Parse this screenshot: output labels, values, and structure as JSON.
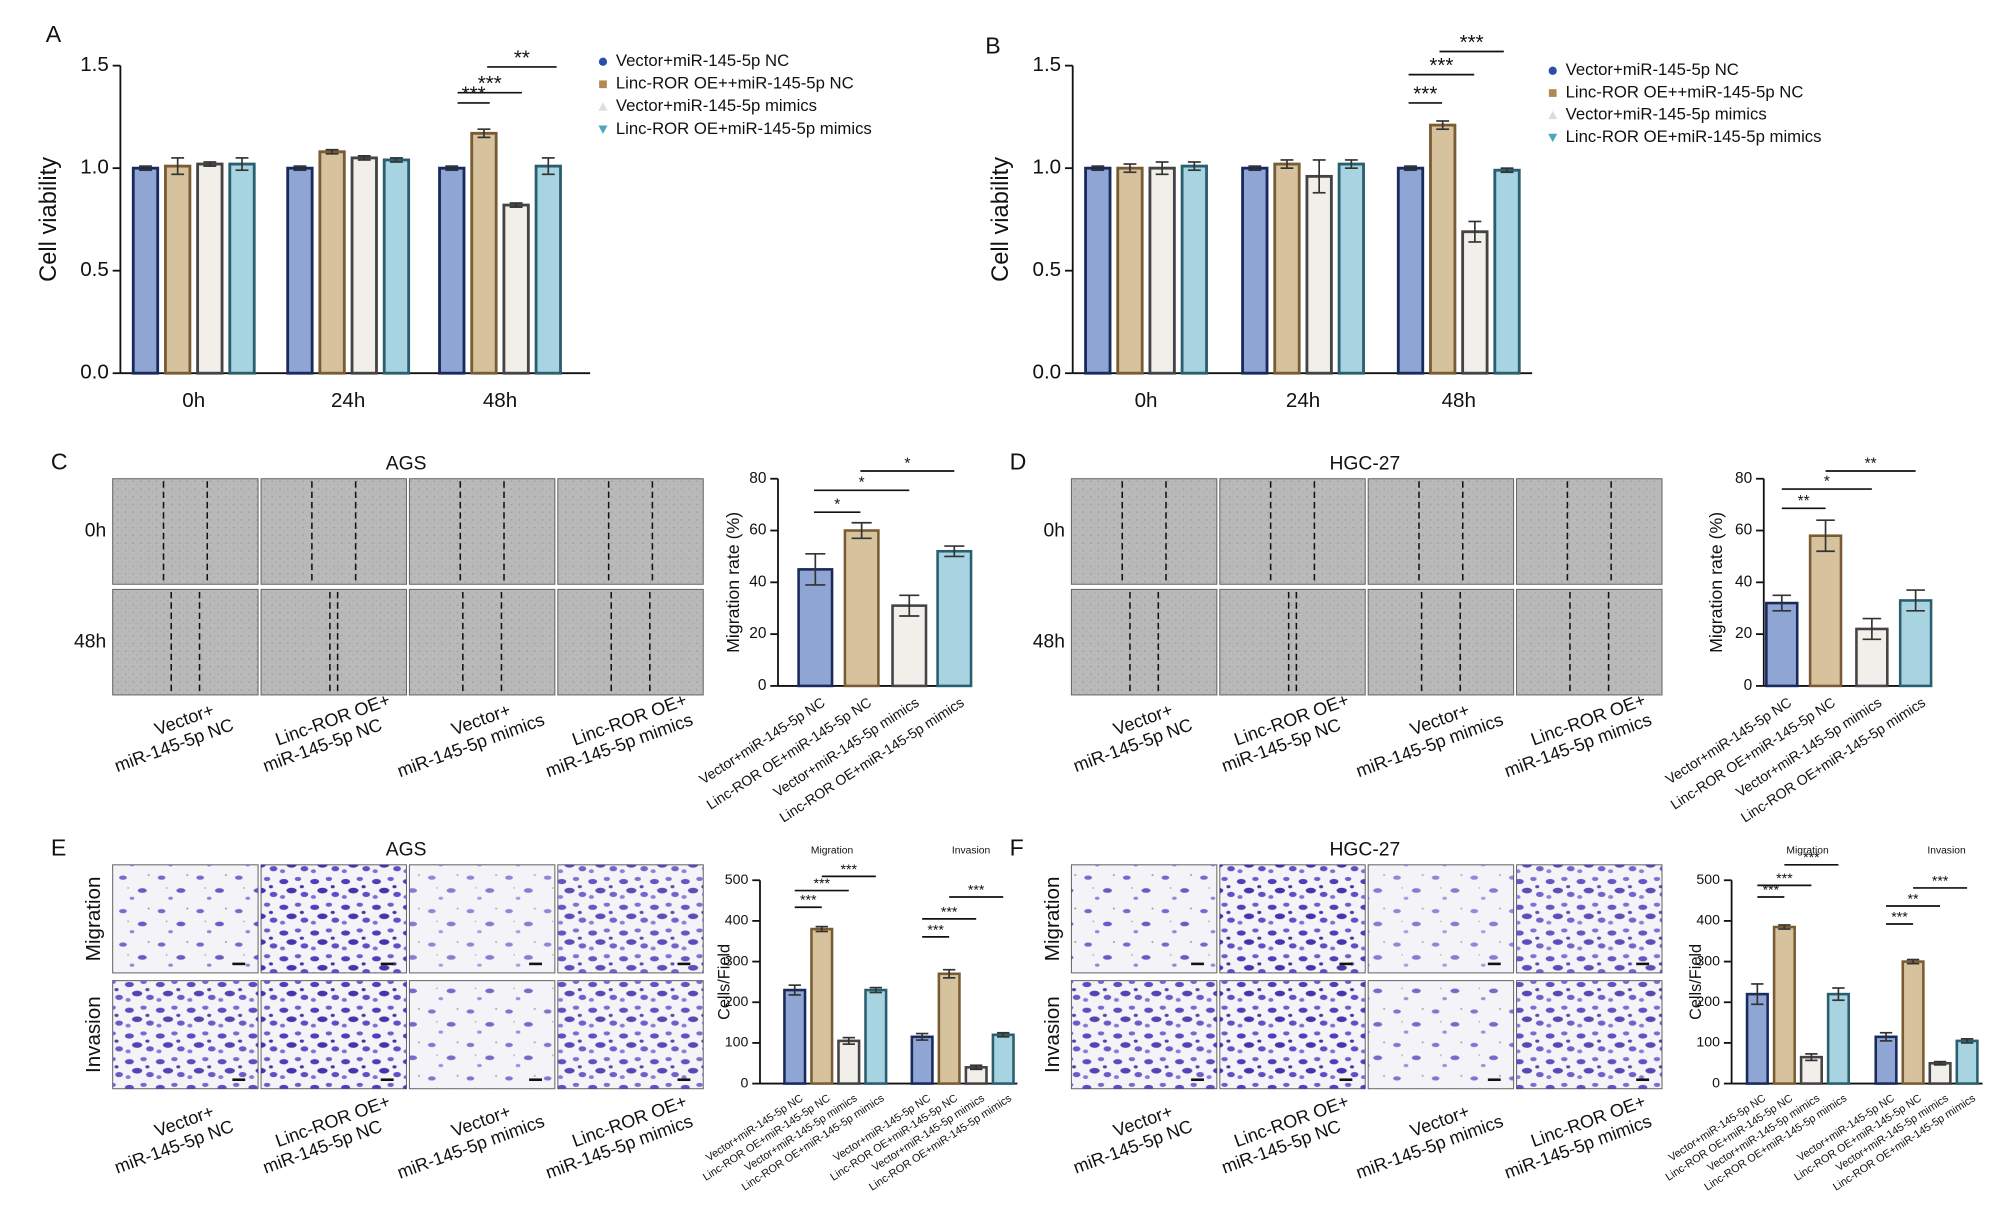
{
  "chart_data": [
    {
      "type": "bar",
      "panel": "A",
      "ylabel": "Cell viability",
      "categories": [
        "0h",
        "24h",
        "48h"
      ],
      "series": [
        {
          "name": "Vector+miR-145-5p NC",
          "color": "#8fa5d3",
          "edgecolor": "#1b2a5c",
          "marker": "circle",
          "values": [
            1,
            1,
            1
          ],
          "errors": [
            0.01,
            0.01,
            0.01
          ]
        },
        {
          "name": "Linc-ROR OE++miR-145-5p NC",
          "color": "#d6c39e",
          "edgecolor": "#7a5c34",
          "marker": "square",
          "values": [
            1.01,
            1.08,
            1.17
          ],
          "errors": [
            0.04,
            0.01,
            0.02
          ]
        },
        {
          "name": "Vector+miR-145-5p mimics",
          "color": "#f2efea",
          "edgecolor": "#444444",
          "marker": "triangle-up",
          "values": [
            1.02,
            1.05,
            0.82
          ],
          "errors": [
            0.01,
            0.01,
            0.01
          ]
        },
        {
          "name": "Linc-ROR OE+miR-145-5p mimics",
          "color": "#a8d3e0",
          "edgecolor": "#2a5f70",
          "marker": "triangle-down",
          "values": [
            1.02,
            1.04,
            1.01
          ],
          "errors": [
            0.03,
            0.01,
            0.04
          ]
        }
      ],
      "ylim": [
        0,
        1.5
      ],
      "yticks": [
        {
          "value": 0,
          "label": "0.0"
        },
        0.5,
        {
          "value": 1,
          "label": "1.0"
        },
        1.5
      ],
      "annotations": [
        "***",
        "***",
        "**"
      ]
    },
    {
      "type": "bar",
      "panel": "B",
      "ylabel": "Cell viability",
      "categories": [
        "0h",
        "24h",
        "48h"
      ],
      "series": [
        {
          "name": "Vector+miR-145-5p NC",
          "color": "#8fa5d3",
          "edgecolor": "#1b2a5c",
          "marker": "circle",
          "values": [
            1,
            1,
            1
          ],
          "errors": [
            0.01,
            0.01,
            0.01
          ]
        },
        {
          "name": "Linc-ROR OE++miR-145-5p NC",
          "color": "#d6c39e",
          "edgecolor": "#7a5c34",
          "marker": "square",
          "values": [
            1.0,
            1.02,
            1.21
          ],
          "errors": [
            0.02,
            0.02,
            0.02
          ]
        },
        {
          "name": "Vector+miR-145-5p mimics",
          "color": "#f2efea",
          "edgecolor": "#444444",
          "marker": "triangle-up",
          "values": [
            1.0,
            0.96,
            0.69
          ],
          "errors": [
            0.03,
            0.08,
            0.05
          ]
        },
        {
          "name": "Linc-ROR OE+miR-145-5p mimics",
          "color": "#a8d3e0",
          "edgecolor": "#2a5f70",
          "marker": "triangle-down",
          "values": [
            1.01,
            1.02,
            0.99
          ],
          "errors": [
            0.02,
            0.02,
            0.01
          ]
        }
      ],
      "ylim": [
        0,
        1.5
      ],
      "yticks": [
        {
          "value": 0,
          "label": "0.0"
        },
        0.5,
        {
          "value": 1,
          "label": "1.0"
        },
        1.5
      ],
      "annotations": [
        "***",
        "***",
        "***"
      ]
    },
    {
      "type": "bar",
      "ylabel": "Migration rate (%)",
      "categories": [
        "Vector+miR-145-5p NC",
        "Linc-ROR OE+miR-145-5p NC",
        "Vector+miR-145-5p mimics",
        "Linc-ROR OE+miR-145-5p mimics"
      ],
      "values": [
        45,
        60,
        31,
        52
      ],
      "errors": [
        6,
        3,
        4,
        2
      ],
      "colors": [
        "#8fa5d3",
        "#d6c39e",
        "#f2efea",
        "#a8d3e0"
      ],
      "edgecolors": [
        "#1b2a5c",
        "#7a5c34",
        "#444444",
        "#2a5f70"
      ],
      "ylim": [
        0,
        80
      ],
      "yticks": [
        0,
        20,
        40,
        60,
        80
      ],
      "annotations": [
        "*",
        "*",
        "*"
      ]
    },
    {
      "type": "bar",
      "ylabel": "Migration rate (%)",
      "categories": [
        "Vector+miR-145-5p NC",
        "Linc-ROR OE+miR-145-5p NC",
        "Vector+miR-145-5p mimics",
        "Linc-ROR OE+miR-145-5p mimics"
      ],
      "values": [
        32,
        58,
        22,
        33
      ],
      "errors": [
        3,
        6,
        4,
        4
      ],
      "colors": [
        "#8fa5d3",
        "#d6c39e",
        "#f2efea",
        "#a8d3e0"
      ],
      "edgecolors": [
        "#1b2a5c",
        "#7a5c34",
        "#444444",
        "#2a5f70"
      ],
      "ylim": [
        0,
        80
      ],
      "yticks": [
        0,
        20,
        40,
        60,
        80
      ],
      "annotations": [
        "**",
        "*",
        "**"
      ]
    },
    {
      "type": "bar",
      "ylabel": "Cells/Field",
      "groups": [
        "Migration",
        "Invasion"
      ],
      "categories": [
        "Vector+miR-145-5p NC",
        "Linc-ROR OE+miR-145-5p NC",
        "Vector+miR-145-5p mimics",
        "Linc-ROR OE+miR-145-5p mimics",
        "Vector+miR-145-5p NC",
        "Linc-ROR OE+miR-145-5p NC",
        "Vector+miR-145-5p mimics",
        "Linc-ROR OE+miR-145-5p mimics"
      ],
      "values": [
        230,
        380,
        105,
        230,
        115,
        270,
        40,
        120
      ],
      "errors": [
        12,
        6,
        8,
        6,
        8,
        10,
        5,
        5
      ],
      "colors": [
        "#8fa5d3",
        "#d6c39e",
        "#f2efea",
        "#a8d3e0",
        "#8fa5d3",
        "#d6c39e",
        "#f2efea",
        "#a8d3e0"
      ],
      "edgecolors": [
        "#1b2a5c",
        "#7a5c34",
        "#444444",
        "#2a5f70",
        "#1b2a5c",
        "#7a5c34",
        "#444444",
        "#2a5f70"
      ],
      "ylim": [
        0,
        500
      ],
      "yticks": [
        0,
        100,
        200,
        300,
        400,
        500
      ],
      "annotations": [
        "***",
        "***",
        "***",
        "***",
        "***",
        "***"
      ]
    },
    {
      "type": "bar",
      "ylabel": "Cells/Field",
      "groups": [
        "Migration",
        "Invasion"
      ],
      "categories": [
        "Vector+miR-145-5p NC",
        "Linc-ROR OE+miR-145-5p NC",
        "Vector+miR-145-5p mimics",
        "Linc-ROR OE+miR-145-5p mimics",
        "Vector+miR-145-5p NC",
        "Linc-ROR OE+miR-145-5p NC",
        "Vector+miR-145-5p mimics",
        "Linc-ROR OE+miR-145-5p mimics"
      ],
      "values": [
        220,
        385,
        65,
        220,
        115,
        300,
        50,
        105
      ],
      "errors": [
        25,
        5,
        8,
        15,
        10,
        5,
        4,
        5
      ],
      "colors": [
        "#8fa5d3",
        "#d6c39e",
        "#f2efea",
        "#a8d3e0",
        "#8fa5d3",
        "#d6c39e",
        "#f2efea",
        "#a8d3e0"
      ],
      "edgecolors": [
        "#1b2a5c",
        "#7a5c34",
        "#444444",
        "#2a5f70",
        "#1b2a5c",
        "#7a5c34",
        "#444444",
        "#2a5f70"
      ],
      "ylim": [
        0,
        500
      ],
      "yticks": [
        0,
        100,
        200,
        300,
        400,
        500
      ],
      "annotations": [
        "***",
        "***",
        "***",
        "***",
        "**",
        "***"
      ]
    }
  ],
  "figures": [
    {
      "panel": "C",
      "title": "AGS",
      "style": "scratch",
      "row_labels": [
        "0h",
        "48h"
      ],
      "col_labels": [
        [
          "Vector+",
          "miR-145-5p NC"
        ],
        [
          "Linc-ROR OE+",
          "miR-145-5p NC"
        ],
        [
          "Vector+",
          "miR-145-5p mimics"
        ],
        [
          "Linc-ROR OE+",
          "miR-145-5p mimics"
        ]
      ]
    },
    {
      "panel": "D",
      "title": "HGC-27",
      "style": "scratch",
      "row_labels": [
        "0h",
        "48h"
      ],
      "col_labels": [
        [
          "Vector+",
          "miR-145-5p NC"
        ],
        [
          "Linc-ROR OE+",
          "miR-145-5p NC"
        ],
        [
          "Vector+",
          "miR-145-5p mimics"
        ],
        [
          "Linc-ROR OE+",
          "miR-145-5p mimics"
        ]
      ]
    },
    {
      "panel": "E",
      "title": "AGS",
      "style": "transwell",
      "row_labels": [
        "Migration",
        "Invasion"
      ],
      "col_labels": [
        [
          "Vector+",
          "miR-145-5p NC"
        ],
        [
          "Linc-ROR OE+",
          "miR-145-5p NC"
        ],
        [
          "Vector+",
          "miR-145-5p mimics"
        ],
        [
          "Linc-ROR OE+",
          "miR-145-5p mimics"
        ]
      ]
    },
    {
      "panel": "F",
      "title": "HGC-27",
      "style": "transwell",
      "row_labels": [
        "Migration",
        "Invasion"
      ],
      "col_labels": [
        [
          "Vector+",
          "miR-145-5p NC"
        ],
        [
          "Linc-ROR OE+",
          "miR-145-5p NC"
        ],
        [
          "Vector+",
          "miR-145-5p mimics"
        ],
        [
          "Linc-ROR OE+",
          "miR-145-5p mimics"
        ]
      ]
    }
  ]
}
